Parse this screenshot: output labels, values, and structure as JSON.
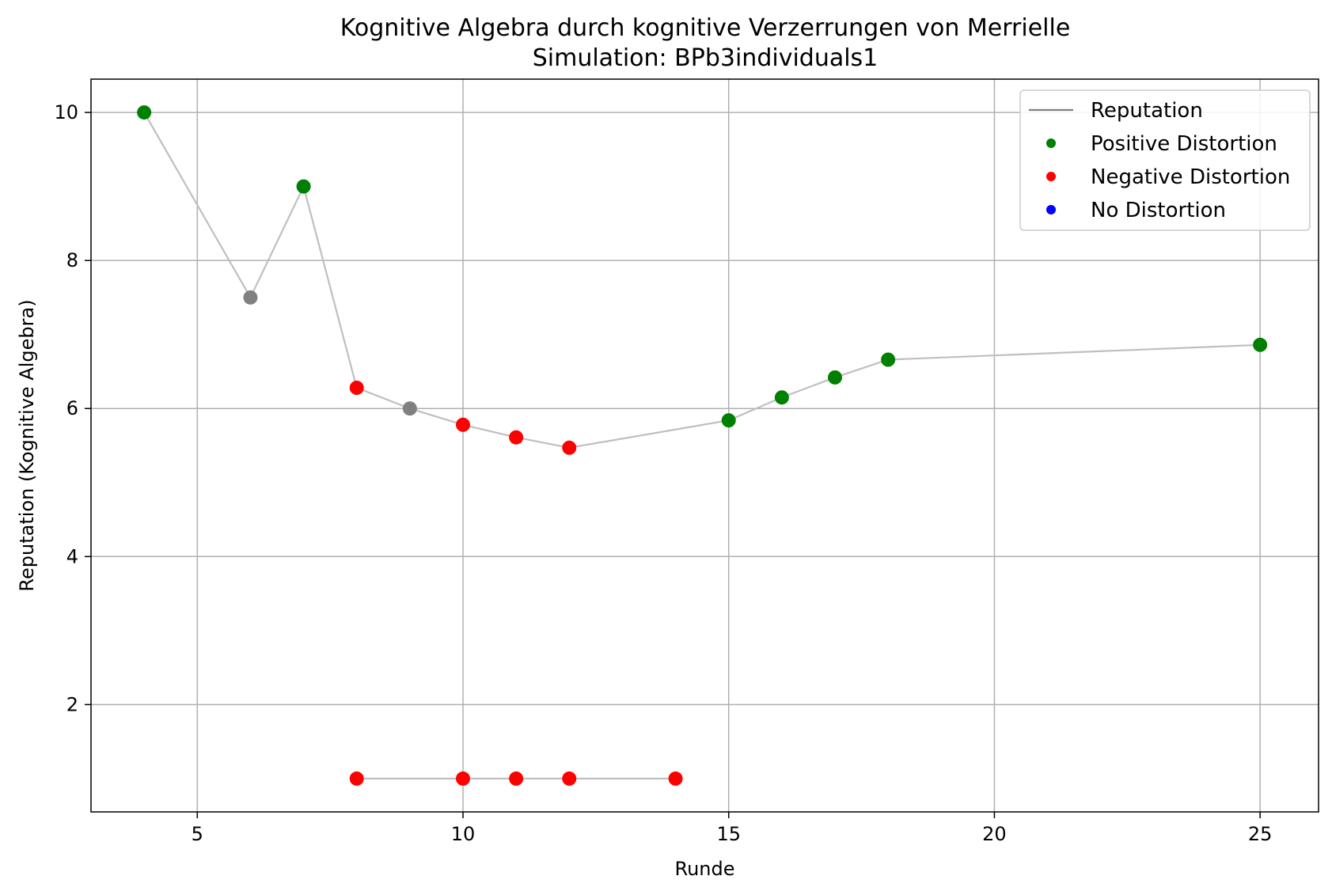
{
  "chart_data": {
    "type": "scatter",
    "title": "Kognitive Algebra durch kognitive Verzerrungen von Merrielle",
    "subtitle": "Simulation: BPb3individuals1",
    "xlabel": "Runde",
    "ylabel": "Reputation (Kognitive Algebra)",
    "xlim": [
      3,
      26.1
    ],
    "ylim": [
      0.55,
      10.45
    ],
    "xticks": [
      5,
      10,
      15,
      20,
      25
    ],
    "yticks": [
      2,
      4,
      6,
      8,
      10
    ],
    "grid": true,
    "legend_position": "top-right",
    "colors": {
      "line": "#bfbfbf",
      "legend_line": "#808080",
      "positive": "#008000",
      "negative": "#ff0000",
      "none": "#0000ff",
      "unclassified": "#808080"
    },
    "legend": [
      {
        "label": "Reputation",
        "kind": "line",
        "color": "#808080"
      },
      {
        "label": "Positive Distortion",
        "kind": "marker",
        "color": "#008000"
      },
      {
        "label": "Negative Distortion",
        "kind": "marker",
        "color": "#ff0000"
      },
      {
        "label": "No Distortion",
        "kind": "marker",
        "color": "#0000ff"
      }
    ],
    "series": [
      {
        "points": [
          {
            "x": 4,
            "y": 10.0,
            "color": "#008000"
          },
          {
            "x": 6,
            "y": 7.5,
            "color": "#808080"
          },
          {
            "x": 7,
            "y": 9.0,
            "color": "#008000"
          },
          {
            "x": 8,
            "y": 6.28,
            "color": "#ff0000"
          },
          {
            "x": 9,
            "y": 6.0,
            "color": "#808080"
          },
          {
            "x": 10,
            "y": 5.78,
            "color": "#ff0000"
          },
          {
            "x": 11,
            "y": 5.61,
            "color": "#ff0000"
          },
          {
            "x": 12,
            "y": 5.47,
            "color": "#ff0000"
          },
          {
            "x": 15,
            "y": 5.84,
            "color": "#008000"
          },
          {
            "x": 16,
            "y": 6.15,
            "color": "#008000"
          },
          {
            "x": 17,
            "y": 6.42,
            "color": "#008000"
          },
          {
            "x": 18,
            "y": 6.66,
            "color": "#008000"
          },
          {
            "x": 25,
            "y": 6.86,
            "color": "#008000"
          }
        ]
      },
      {
        "points": [
          {
            "x": 8,
            "y": 1.0,
            "color": "#ff0000"
          },
          {
            "x": 10,
            "y": 1.0,
            "color": "#ff0000"
          },
          {
            "x": 11,
            "y": 1.0,
            "color": "#ff0000"
          },
          {
            "x": 12,
            "y": 1.0,
            "color": "#ff0000"
          },
          {
            "x": 14,
            "y": 1.0,
            "color": "#ff0000"
          }
        ]
      }
    ]
  }
}
